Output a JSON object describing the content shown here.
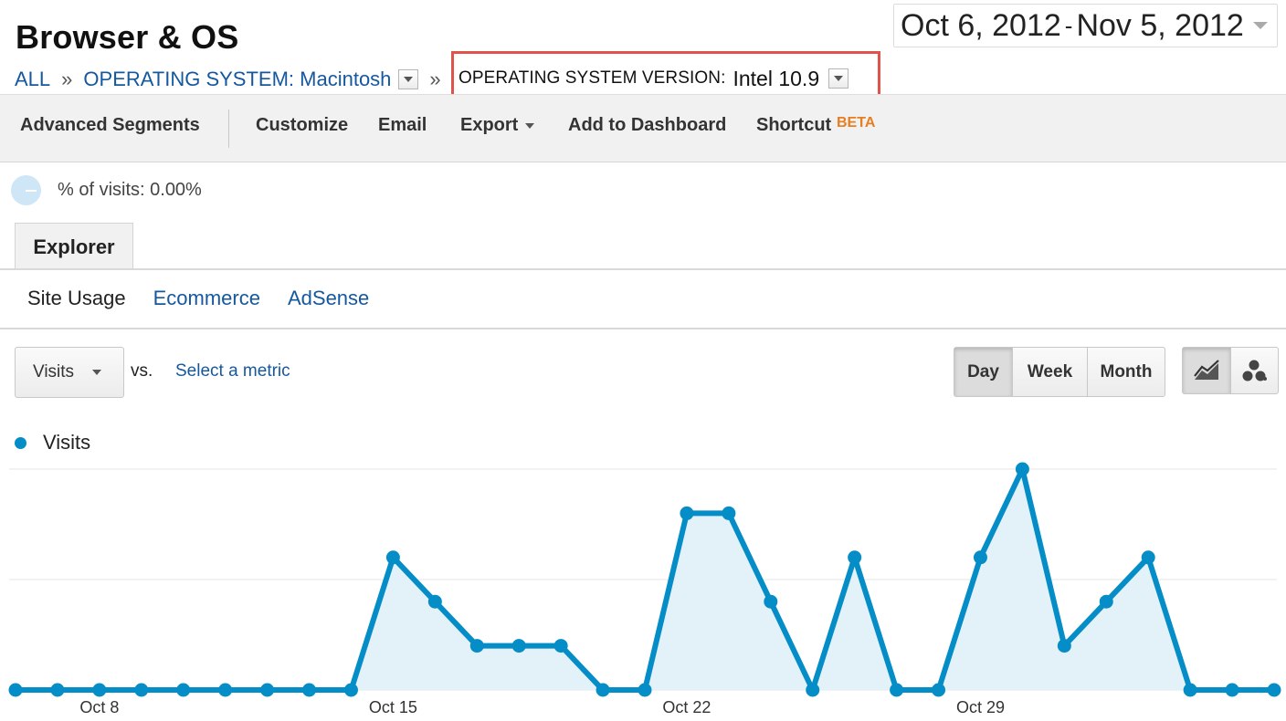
{
  "header": {
    "title": "Browser & OS",
    "date_start": "Oct 6, 2012",
    "date_sep": "-",
    "date_end": "Nov 5, 2012"
  },
  "breadcrumb": {
    "all": "ALL",
    "sep": "»",
    "os_label": "OPERATING SYSTEM: Macintosh",
    "version_label": "OPERATING SYSTEM VERSION:",
    "version_value": "Intel 10.9"
  },
  "toolbar": {
    "advanced_segments": "Advanced Segments",
    "customize": "Customize",
    "email": "Email",
    "export": "Export",
    "add_to_dashboard": "Add to Dashboard",
    "shortcut": "Shortcut",
    "beta": "BETA"
  },
  "segment_info": {
    "percent_text": "% of visits: 0.00%"
  },
  "tabs": {
    "explorer": "Explorer",
    "sub": [
      "Site Usage",
      "Ecommerce",
      "AdSense"
    ]
  },
  "controls": {
    "metric": "Visits",
    "vs": "vs.",
    "select_metric": "Select a metric",
    "granularity": [
      "Day",
      "Week",
      "Month"
    ],
    "granularity_selected": "Day",
    "view_icons": [
      "line-chart-icon",
      "motion-chart-icon"
    ],
    "view_selected": "line-chart-icon"
  },
  "colors": {
    "series": "#058dc7",
    "fill": "#e3f1f9",
    "link": "#15589e",
    "highlight_border": "#e0534a",
    "beta": "#e67e22"
  },
  "chart_data": {
    "type": "area",
    "legend": [
      "Visits"
    ],
    "legend_placement": "top-left",
    "x_tick_labels": [
      "Oct 8",
      "Oct 15",
      "Oct 22",
      "Oct 29"
    ],
    "x_tick_index": [
      2,
      9,
      16,
      23
    ],
    "x": [
      "Oct 6",
      "Oct 7",
      "Oct 8",
      "Oct 9",
      "Oct 10",
      "Oct 11",
      "Oct 12",
      "Oct 13",
      "Oct 14",
      "Oct 15",
      "Oct 16",
      "Oct 17",
      "Oct 18",
      "Oct 19",
      "Oct 20",
      "Oct 21",
      "Oct 22",
      "Oct 23",
      "Oct 24",
      "Oct 25",
      "Oct 26",
      "Oct 27",
      "Oct 28",
      "Oct 29",
      "Oct 30",
      "Oct 31",
      "Nov 1",
      "Nov 2",
      "Nov 3",
      "Nov 4",
      "Nov 5"
    ],
    "series": [
      {
        "name": "Visits",
        "values": [
          0,
          0,
          0,
          0,
          0,
          0,
          0,
          0,
          0,
          3,
          2,
          1,
          1,
          1,
          0,
          0,
          4,
          4,
          2,
          0,
          3,
          0,
          0,
          3,
          5,
          1,
          2,
          3,
          0,
          0,
          0
        ]
      }
    ],
    "ylim": [
      0,
      5
    ],
    "y_gridlines": [
      0,
      2.5,
      5
    ],
    "grid": true
  }
}
